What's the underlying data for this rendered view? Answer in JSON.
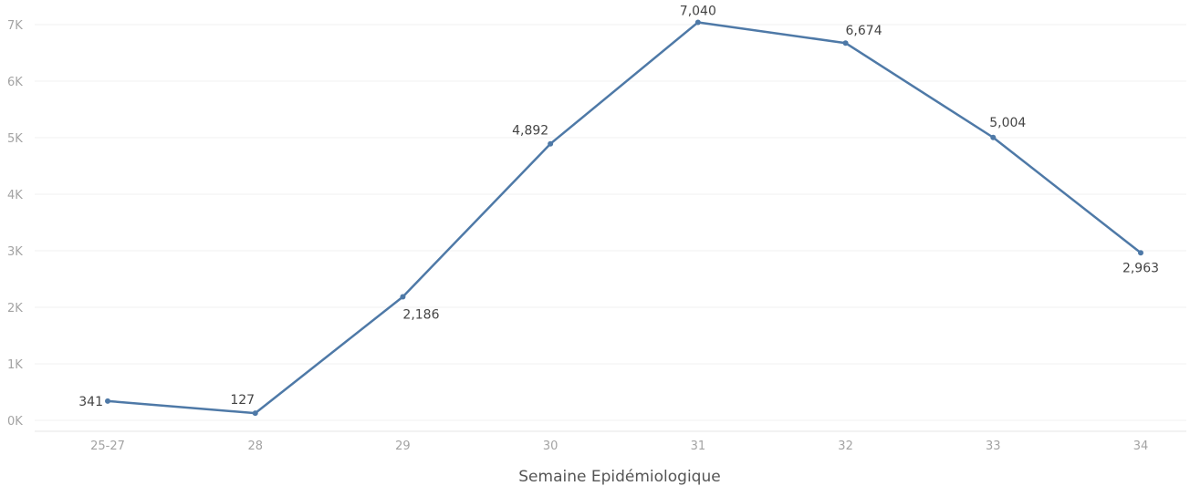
{
  "chart_data": {
    "type": "line",
    "categories": [
      "25-27",
      "28",
      "29",
      "30",
      "31",
      "32",
      "33",
      "34"
    ],
    "values": [
      341,
      127,
      2186,
      4892,
      7040,
      6674,
      5004,
      2963
    ],
    "value_labels": [
      "341",
      "127",
      "2,186",
      "4,892",
      "7,040",
      "6,674",
      "5,004",
      "2,963"
    ],
    "y_ticks": [
      0,
      1000,
      2000,
      3000,
      4000,
      5000,
      6000,
      7000
    ],
    "y_tick_labels": [
      "0K",
      "1K",
      "2K",
      "3K",
      "4K",
      "5K",
      "6K",
      "7K"
    ],
    "ylim": [
      0,
      7000
    ],
    "xlabel": "Semaine Epidémiologique",
    "ylabel": "",
    "title": "",
    "grid": true,
    "colors": {
      "line": "#4e79a7",
      "grid": "#f1f1f1",
      "tick_text": "#a3a3a3",
      "label_text": "#444444",
      "axis_title": "#555555"
    }
  }
}
